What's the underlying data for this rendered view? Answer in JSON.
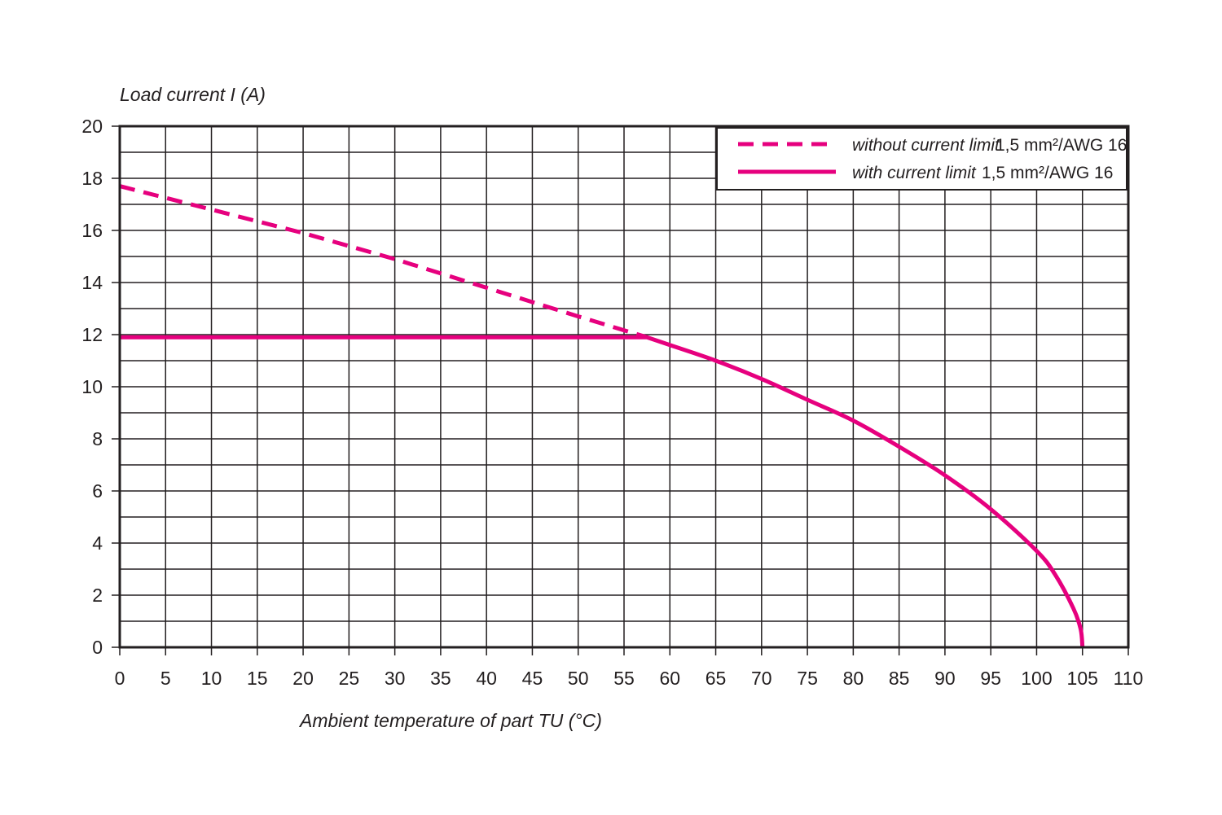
{
  "chart_data": {
    "type": "line",
    "ylabel": "Load current I (A)",
    "xlabel": "Ambient temperature of part TU (°C)",
    "xlim": [
      0,
      110
    ],
    "ylim": [
      0,
      20
    ],
    "x_ticks": [
      0,
      5,
      10,
      15,
      20,
      25,
      30,
      35,
      40,
      45,
      50,
      55,
      60,
      65,
      70,
      75,
      80,
      85,
      90,
      95,
      100,
      105,
      110
    ],
    "y_ticks": [
      0,
      2,
      4,
      6,
      8,
      10,
      12,
      14,
      16,
      18,
      20
    ],
    "grid": "on (x every 5, y every 1)",
    "legend_position": "top-right",
    "accent_color": "#e6007e",
    "series": [
      {
        "name": "without current limit",
        "label_spec": "1,5 mm²/AWG 16",
        "style": "dashed",
        "x": [
          0,
          10,
          20,
          30,
          40,
          50,
          57.5
        ],
        "y": [
          17.7,
          16.8,
          15.9,
          14.9,
          13.8,
          12.7,
          11.9
        ]
      },
      {
        "name": "with current limit",
        "label_spec": "1,5 mm²/AWG 16",
        "style": "solid",
        "x": [
          0,
          57.5,
          60,
          65,
          70,
          75,
          80,
          85,
          90,
          95,
          100,
          102,
          104,
          104.8,
          105
        ],
        "y": [
          11.9,
          11.9,
          11.6,
          11.0,
          10.3,
          9.5,
          8.7,
          7.7,
          6.6,
          5.3,
          3.7,
          2.8,
          1.5,
          0.7,
          0.0
        ]
      }
    ]
  }
}
